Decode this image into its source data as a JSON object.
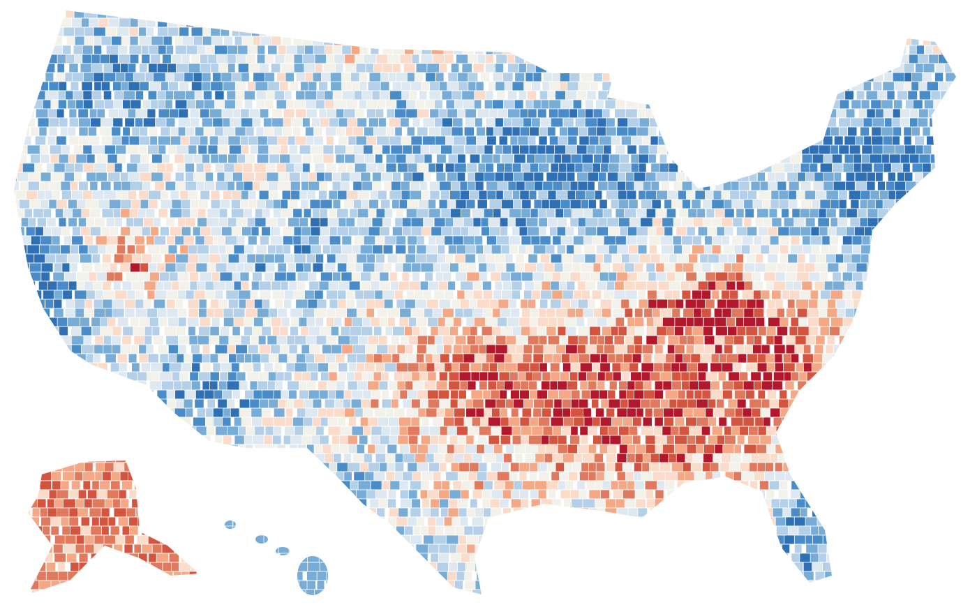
{
  "map": {
    "palette": [
      "#2f6fb3",
      "#4a8cc7",
      "#77acd6",
      "#b3d0e8",
      "#dde8f0",
      "#f2f1ea",
      "#fbdcca",
      "#f4a886",
      "#e07a5f",
      "#d4553f",
      "#b2182b"
    ]
  }
}
